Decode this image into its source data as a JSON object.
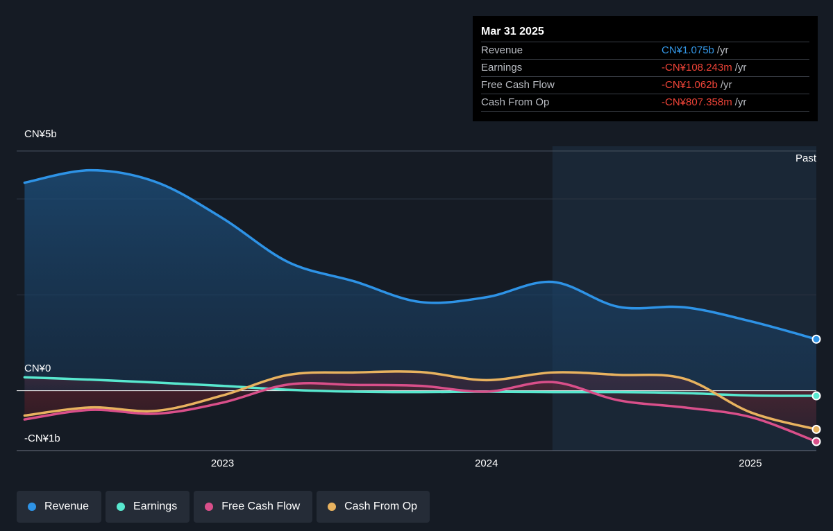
{
  "tooltip": {
    "date": "Mar 31 2025",
    "rows": [
      {
        "label": "Revenue",
        "value": "CN¥1.075b",
        "unit": "/yr",
        "tone": "pos"
      },
      {
        "label": "Earnings",
        "value": "-CN¥108.243m",
        "unit": "/yr",
        "tone": "neg"
      },
      {
        "label": "Free Cash Flow",
        "value": "-CN¥1.062b",
        "unit": "/yr",
        "tone": "neg"
      },
      {
        "label": "Cash From Op",
        "value": "-CN¥807.358m",
        "unit": "/yr",
        "tone": "neg"
      }
    ]
  },
  "past_label": "Past",
  "legend": [
    {
      "label": "Revenue",
      "color": "#2e93e6"
    },
    {
      "label": "Earnings",
      "color": "#58e8cf"
    },
    {
      "label": "Free Cash Flow",
      "color": "#d94f8a"
    },
    {
      "label": "Cash From Op",
      "color": "#e8b25f"
    }
  ],
  "chart_data": {
    "type": "line",
    "y_tick_labels": [
      "CN¥5b",
      "CN¥0",
      "-CN¥1b"
    ],
    "ylim": [
      -1.25,
      5.1
    ],
    "x_tick_labels": [
      "2023",
      "2024",
      "2025"
    ],
    "x_ticks": [
      2023.0,
      2024.0,
      2025.0
    ],
    "xlim": [
      2022.22,
      2025.25
    ],
    "past_region_start": 2024.25,
    "grid": true,
    "legend_position": "bottom",
    "x": [
      2022.25,
      2022.5,
      2022.75,
      2023.0,
      2023.25,
      2023.5,
      2023.75,
      2024.0,
      2024.25,
      2024.5,
      2024.75,
      2025.0,
      2025.25
    ],
    "series": [
      {
        "name": "Revenue",
        "color": "#2e93e6",
        "values": [
          4.34,
          4.6,
          4.35,
          3.6,
          2.68,
          2.28,
          1.85,
          1.95,
          2.27,
          1.75,
          1.74,
          1.45,
          1.075
        ]
      },
      {
        "name": "Earnings",
        "color": "#58e8cf",
        "values": [
          0.28,
          0.23,
          0.17,
          0.1,
          0.02,
          -0.02,
          -0.03,
          -0.02,
          -0.03,
          -0.03,
          -0.05,
          -0.1,
          -0.108
        ]
      },
      {
        "name": "Free Cash Flow",
        "color": "#d94f8a",
        "values": [
          -0.6,
          -0.4,
          -0.48,
          -0.25,
          0.13,
          0.12,
          0.1,
          -0.02,
          0.18,
          -0.2,
          -0.35,
          -0.55,
          -1.062
        ]
      },
      {
        "name": "Cash From Op",
        "color": "#e8b25f",
        "values": [
          -0.52,
          -0.35,
          -0.42,
          -0.1,
          0.33,
          0.38,
          0.39,
          0.22,
          0.38,
          0.33,
          0.25,
          -0.45,
          -0.807
        ]
      }
    ]
  }
}
